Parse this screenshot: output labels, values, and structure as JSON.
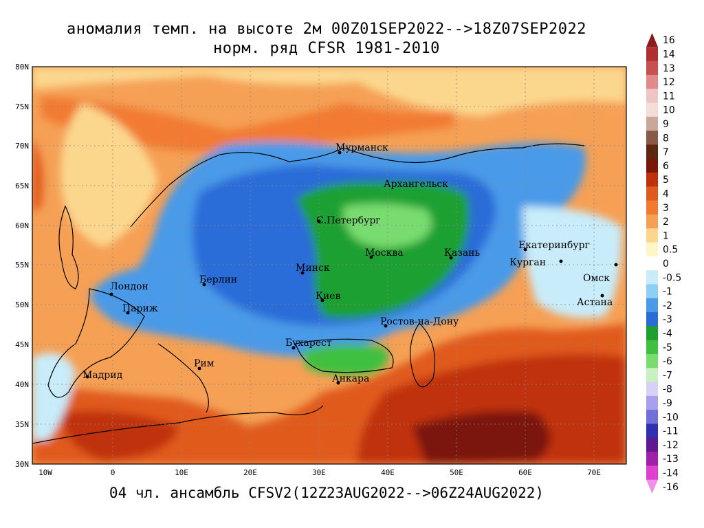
{
  "header": {
    "title_line1": "аномалия темп. на высоте 2м 00Z01SEP2022-->18Z07SEP2022",
    "title_line2": "норм. ряд CFSR 1981-2010"
  },
  "footer": {
    "ensemble": "04 чл. ансамбль CFSV2(12Z23AUG2022-->06Z24AUG2022)"
  },
  "axes": {
    "lat_labels": [
      "80N",
      "75N",
      "70N",
      "65N",
      "60N",
      "55N",
      "50N",
      "45N",
      "40N",
      "35N",
      "30N"
    ],
    "lon_labels": [
      "10W",
      "0",
      "10E",
      "20E",
      "30E",
      "40E",
      "50E",
      "60E",
      "70E"
    ]
  },
  "cities": [
    {
      "name": "Мурманск"
    },
    {
      "name": "Архангельск"
    },
    {
      "name": "С.Петербург"
    },
    {
      "name": "Москва"
    },
    {
      "name": "Казань"
    },
    {
      "name": "Екатеринбург"
    },
    {
      "name": "Курган"
    },
    {
      "name": "Омск"
    },
    {
      "name": "Астана"
    },
    {
      "name": "Минск"
    },
    {
      "name": "Киев"
    },
    {
      "name": "Берлин"
    },
    {
      "name": "Лондон"
    },
    {
      "name": "Париж"
    },
    {
      "name": "Ростов-на-Дону"
    },
    {
      "name": "Бухарест"
    },
    {
      "name": "Рим"
    },
    {
      "name": "Мадрид"
    },
    {
      "name": "Анкара"
    }
  ],
  "colorbar": {
    "labels": [
      "16",
      "14",
      "13",
      "12",
      "11",
      "10",
      "9",
      "8",
      "7",
      "6",
      "5",
      "4",
      "3",
      "2",
      "1",
      "0.5",
      "0",
      "-0.5",
      "-1",
      "-2",
      "-3",
      "-4",
      "-5",
      "-6",
      "-7",
      "-8",
      "-9",
      "-10",
      "-11",
      "-12",
      "-13",
      "-14",
      "-16"
    ],
    "colors": [
      "#8b1a1a",
      "#b03030",
      "#c85050",
      "#e08a8a",
      "#efc5c5",
      "#f3ddd8",
      "#c9a89a",
      "#8a5a48",
      "#5c2810",
      "#7a1808",
      "#c0300c",
      "#e05a1c",
      "#f27a30",
      "#f5a055",
      "#fbd78e",
      "#fff6c8",
      "#ffffff",
      "#c8ecfa",
      "#8fcff5",
      "#4a9ae8",
      "#2a6cd8",
      "#1ea030",
      "#3fc040",
      "#78dc70",
      "#c8f0c0",
      "#d8d0f5",
      "#a8a0ec",
      "#7070d8",
      "#3030b0",
      "#601890",
      "#a020a8",
      "#e040d0",
      "#f090e8"
    ]
  },
  "colors": {
    "warm_strong": "#c0300c",
    "warm": "#f27a30",
    "cool": "#2a6cd8",
    "cold": "#1ea030"
  }
}
